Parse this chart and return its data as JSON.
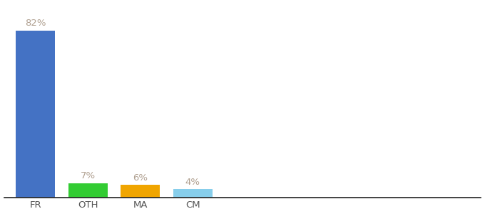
{
  "categories": [
    "FR",
    "OTH",
    "MA",
    "CM"
  ],
  "values": [
    82,
    7,
    6,
    4
  ],
  "bar_colors": [
    "#4472c4",
    "#33cc33",
    "#f0a500",
    "#87ceeb"
  ],
  "label_color": "#b0a090",
  "background_color": "#ffffff",
  "ylim": [
    0,
    95
  ],
  "bar_width": 0.75,
  "label_fontsize": 9.5,
  "tick_fontsize": 9.5,
  "figure_width": 6.8,
  "figure_height": 3.0,
  "dpi": 100,
  "xlim_left": -0.6,
  "xlim_right": 8.5
}
